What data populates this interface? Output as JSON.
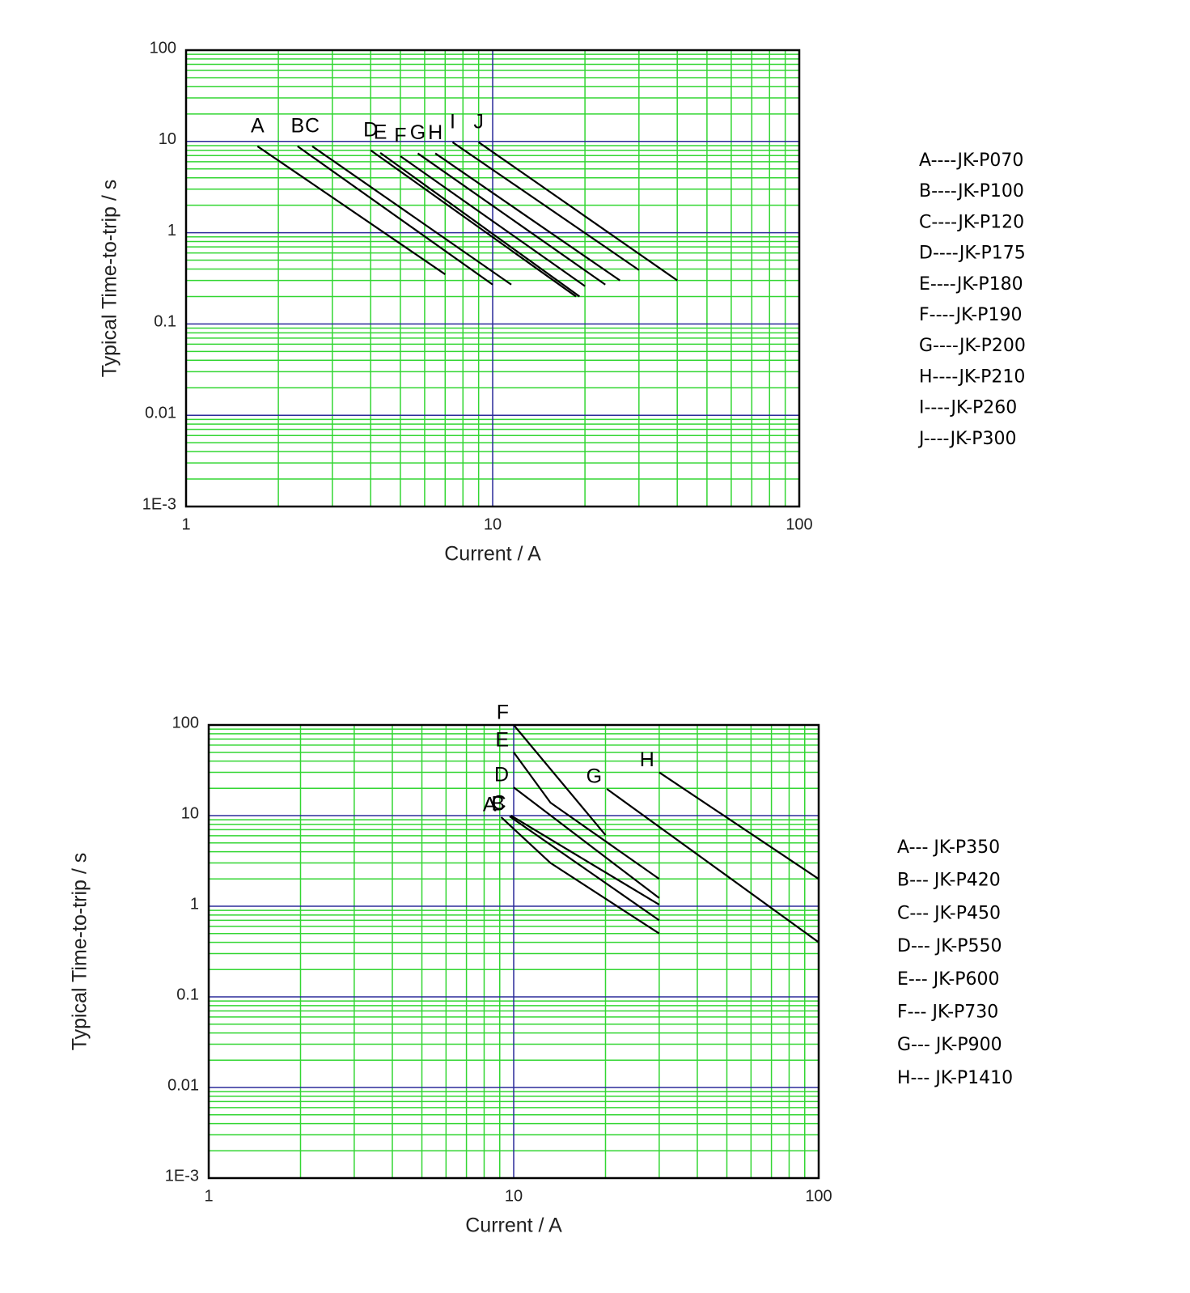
{
  "chart_data": [
    {
      "type": "line",
      "x_label": "Current / A",
      "y_label": "Typical Time-to-trip / s",
      "xlim": [
        1,
        100
      ],
      "ylim": [
        0.001,
        100
      ],
      "xticks": [
        1,
        10,
        100
      ],
      "yticks": [
        100,
        10,
        1,
        0.1,
        0.01,
        {
          "value": 0.001,
          "label": "1E-3"
        }
      ],
      "log_x": true,
      "log_y": true,
      "grid": true,
      "minor_grid": true,
      "legend_position": "right",
      "series": [
        {
          "name": "A",
          "legend": "A----JK-P070",
          "color": "#000000",
          "x": [
            1.71,
            7
          ],
          "values": [
            8.85,
            0.35
          ]
        },
        {
          "name": "B",
          "legend": "B----JK-P100",
          "color": "#000000",
          "x": [
            2.31,
            10
          ],
          "values": [
            8.85,
            0.27
          ]
        },
        {
          "name": "C",
          "legend": "C----JK-P120",
          "color": "#000000",
          "x": [
            2.58,
            11.5
          ],
          "values": [
            8.85,
            0.27
          ]
        },
        {
          "name": "D",
          "legend": "D----JK-P175",
          "color": "#000000",
          "x": [
            4.0,
            18.7
          ],
          "values": [
            8.0,
            0.2
          ]
        },
        {
          "name": "E",
          "legend": "E----JK-P180",
          "color": "#000000",
          "x": [
            4.3,
            19.2
          ],
          "values": [
            7.5,
            0.2
          ]
        },
        {
          "name": "F",
          "legend": "F----JK-P190",
          "color": "#000000",
          "x": [
            5.0,
            20
          ],
          "values": [
            6.9,
            0.26
          ]
        },
        {
          "name": "G",
          "legend": "G----JK-P200",
          "color": "#000000",
          "x": [
            5.7,
            23.3
          ],
          "values": [
            7.4,
            0.27
          ]
        },
        {
          "name": "H",
          "legend": "H----JK-P210",
          "color": "#000000",
          "x": [
            6.5,
            26
          ],
          "values": [
            7.4,
            0.3
          ]
        },
        {
          "name": "I",
          "legend": "I----JK-P260",
          "color": "#000000",
          "x": [
            7.4,
            30
          ],
          "values": [
            9.8,
            0.39
          ]
        },
        {
          "name": "J",
          "legend": "J----JK-P300",
          "color": "#000000",
          "x": [
            9.0,
            40
          ],
          "values": [
            9.8,
            0.3
          ]
        }
      ]
    },
    {
      "type": "line",
      "x_label": "Current / A",
      "y_label": "Typical Time-to-trip / s",
      "xlim": [
        1,
        100
      ],
      "ylim": [
        0.001,
        100
      ],
      "xticks": [
        1,
        10,
        100
      ],
      "yticks": [
        100,
        10,
        1,
        0.1,
        0.01,
        {
          "value": 0.001,
          "label": "1E-3"
        }
      ],
      "log_x": true,
      "log_y": true,
      "grid": true,
      "minor_grid": true,
      "legend_position": "right",
      "series": [
        {
          "name": "A",
          "legend": "A--- JK-P350",
          "color": "#000000",
          "x": [
            9.1,
            13.2,
            30
          ],
          "values": [
            9.6,
            3.0,
            0.5
          ]
        },
        {
          "name": "B",
          "legend": "B--- JK-P420",
          "color": "#000000",
          "x": [
            9.7,
            30
          ],
          "values": [
            9.8,
            0.7
          ]
        },
        {
          "name": "C",
          "legend": "C--- JK-P450",
          "color": "#000000",
          "x": [
            9.8,
            30
          ],
          "values": [
            10,
            1.04
          ]
        },
        {
          "name": "D",
          "legend": "D--- JK-P550",
          "color": "#000000",
          "x": [
            10,
            30
          ],
          "values": [
            20.5,
            1.23
          ]
        },
        {
          "name": "E",
          "legend": "E--- JK-P600",
          "color": "#000000",
          "x": [
            10,
            13.2,
            30
          ],
          "values": [
            50,
            13.9,
            2.0
          ]
        },
        {
          "name": "F",
          "legend": "F--- JK-P730",
          "color": "#000000",
          "x": [
            10,
            20
          ],
          "values": [
            100,
            6.1
          ]
        },
        {
          "name": "G",
          "legend": "G--- JK-P900",
          "color": "#000000",
          "x": [
            20.2,
            100
          ],
          "values": [
            19.7,
            0.4
          ]
        },
        {
          "name": "H",
          "legend": "H--- JK-P1410",
          "color": "#000000",
          "x": [
            30,
            100
          ],
          "values": [
            30,
            2.0
          ]
        }
      ]
    }
  ]
}
